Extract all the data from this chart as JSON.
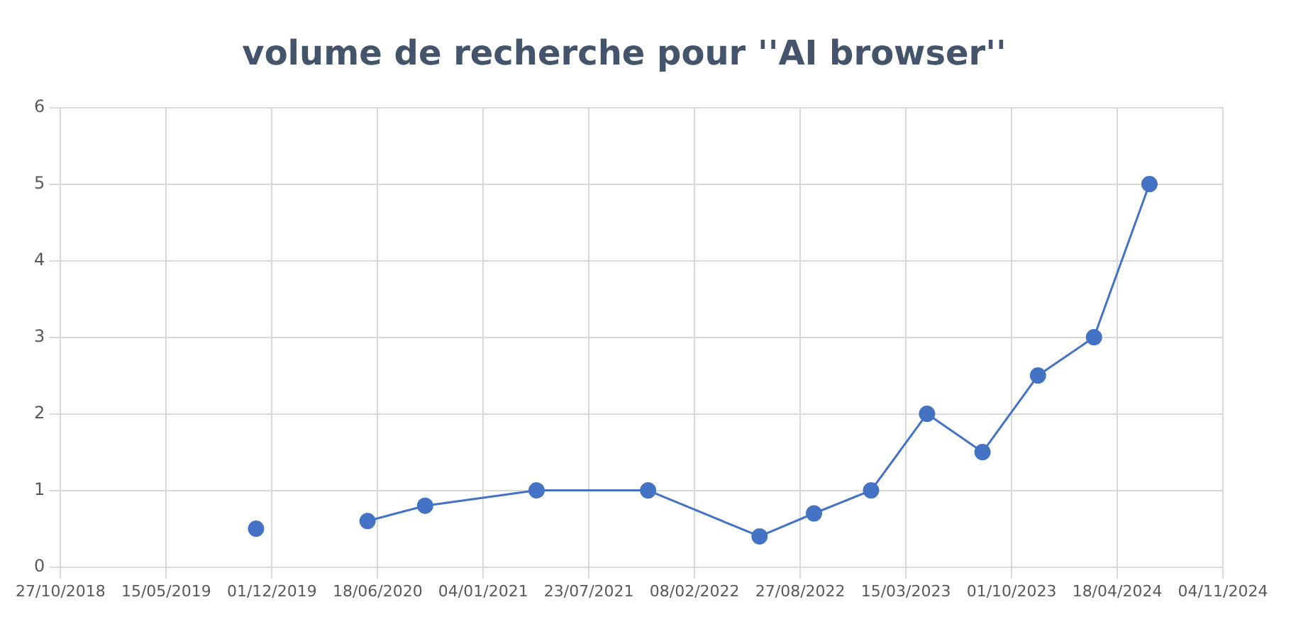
{
  "chart_data": {
    "type": "line",
    "title": "volume de recherche pour ''AI browser''",
    "series": [
      {
        "color": "#4472c4",
        "x": [
          "2019-11-01"
        ],
        "values": [
          0.5
        ]
      },
      {
        "color": "#4472c4",
        "x": [
          "2020-05-30",
          "2020-09-16",
          "2021-04-15",
          "2021-11-12",
          "2022-06-11",
          "2022-09-22",
          "2023-01-08",
          "2023-04-24",
          "2023-08-07",
          "2023-11-20",
          "2024-03-05",
          "2024-06-18"
        ],
        "values": [
          0.6,
          0.8,
          1,
          1,
          0.4,
          0.7,
          1,
          2,
          1.5,
          2.5,
          3,
          5
        ]
      }
    ],
    "xlim": [
      "2018-10-27",
      "2024-11-04"
    ],
    "xticks": [
      {
        "value": "2018-10-27",
        "label": "27/10/2018"
      },
      {
        "value": "2019-05-15",
        "label": "15/05/2019"
      },
      {
        "value": "2019-12-01",
        "label": "01/12/2019"
      },
      {
        "value": "2020-06-18",
        "label": "18/06/2020"
      },
      {
        "value": "2021-01-04",
        "label": "04/01/2021"
      },
      {
        "value": "2021-07-23",
        "label": "23/07/2021"
      },
      {
        "value": "2022-02-08",
        "label": "08/02/2022"
      },
      {
        "value": "2022-08-27",
        "label": "27/08/2022"
      },
      {
        "value": "2023-03-15",
        "label": "15/03/2023"
      },
      {
        "value": "2023-10-01",
        "label": "01/10/2023"
      },
      {
        "value": "2024-04-18",
        "label": "18/04/2024"
      },
      {
        "value": "2024-11-04",
        "label": "04/11/2024"
      }
    ],
    "ylim": [
      0,
      6
    ],
    "yticks": [
      0,
      1,
      2,
      3,
      4,
      5,
      6
    ],
    "grid": true,
    "legend": false,
    "marker": "circle",
    "line_style": "solid"
  }
}
